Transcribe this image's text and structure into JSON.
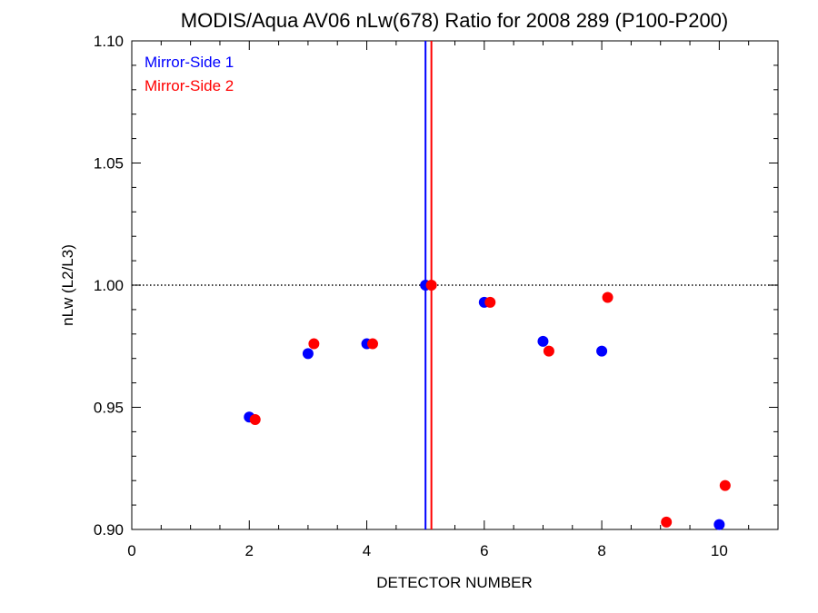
{
  "chart_data": {
    "type": "scatter",
    "title": "MODIS/Aqua AV06 nLw(678) Ratio for 2008 289 (P100-P200)",
    "xlabel": "DETECTOR NUMBER",
    "ylabel": "nLw (L2/L3)",
    "xlim": [
      0,
      11
    ],
    "ylim": [
      0.9,
      1.1
    ],
    "x_ticks": [
      0,
      2,
      4,
      6,
      8,
      10
    ],
    "x_tick_labels": [
      "0",
      "2",
      "4",
      "6",
      "8",
      "10"
    ],
    "y_ticks": [
      0.9,
      0.95,
      1.0,
      1.05,
      1.1
    ],
    "y_tick_labels": [
      "0.90",
      "0.95",
      "1.00",
      "1.05",
      "1.10"
    ],
    "reference_line": {
      "y": 1.0,
      "style": "dotted"
    },
    "legend_position": "top-left",
    "series": [
      {
        "name": "Mirror-Side 1",
        "color": "#0000ff",
        "vline_x": 5.0,
        "points": [
          [
            2,
            0.946
          ],
          [
            3,
            0.972
          ],
          [
            4,
            0.976
          ],
          [
            5,
            1.0
          ],
          [
            6,
            0.993
          ],
          [
            7,
            0.977
          ],
          [
            8,
            0.973
          ],
          [
            10,
            0.902
          ]
        ]
      },
      {
        "name": "Mirror-Side 2",
        "color": "#ff0000",
        "vline_x": 5.1,
        "points": [
          [
            2.1,
            0.945
          ],
          [
            3.1,
            0.976
          ],
          [
            4.1,
            0.976
          ],
          [
            5.1,
            1.0
          ],
          [
            6.1,
            0.993
          ],
          [
            7.1,
            0.973
          ],
          [
            8.1,
            0.995
          ],
          [
            9.1,
            0.903
          ],
          [
            10.1,
            0.918
          ]
        ]
      }
    ]
  }
}
